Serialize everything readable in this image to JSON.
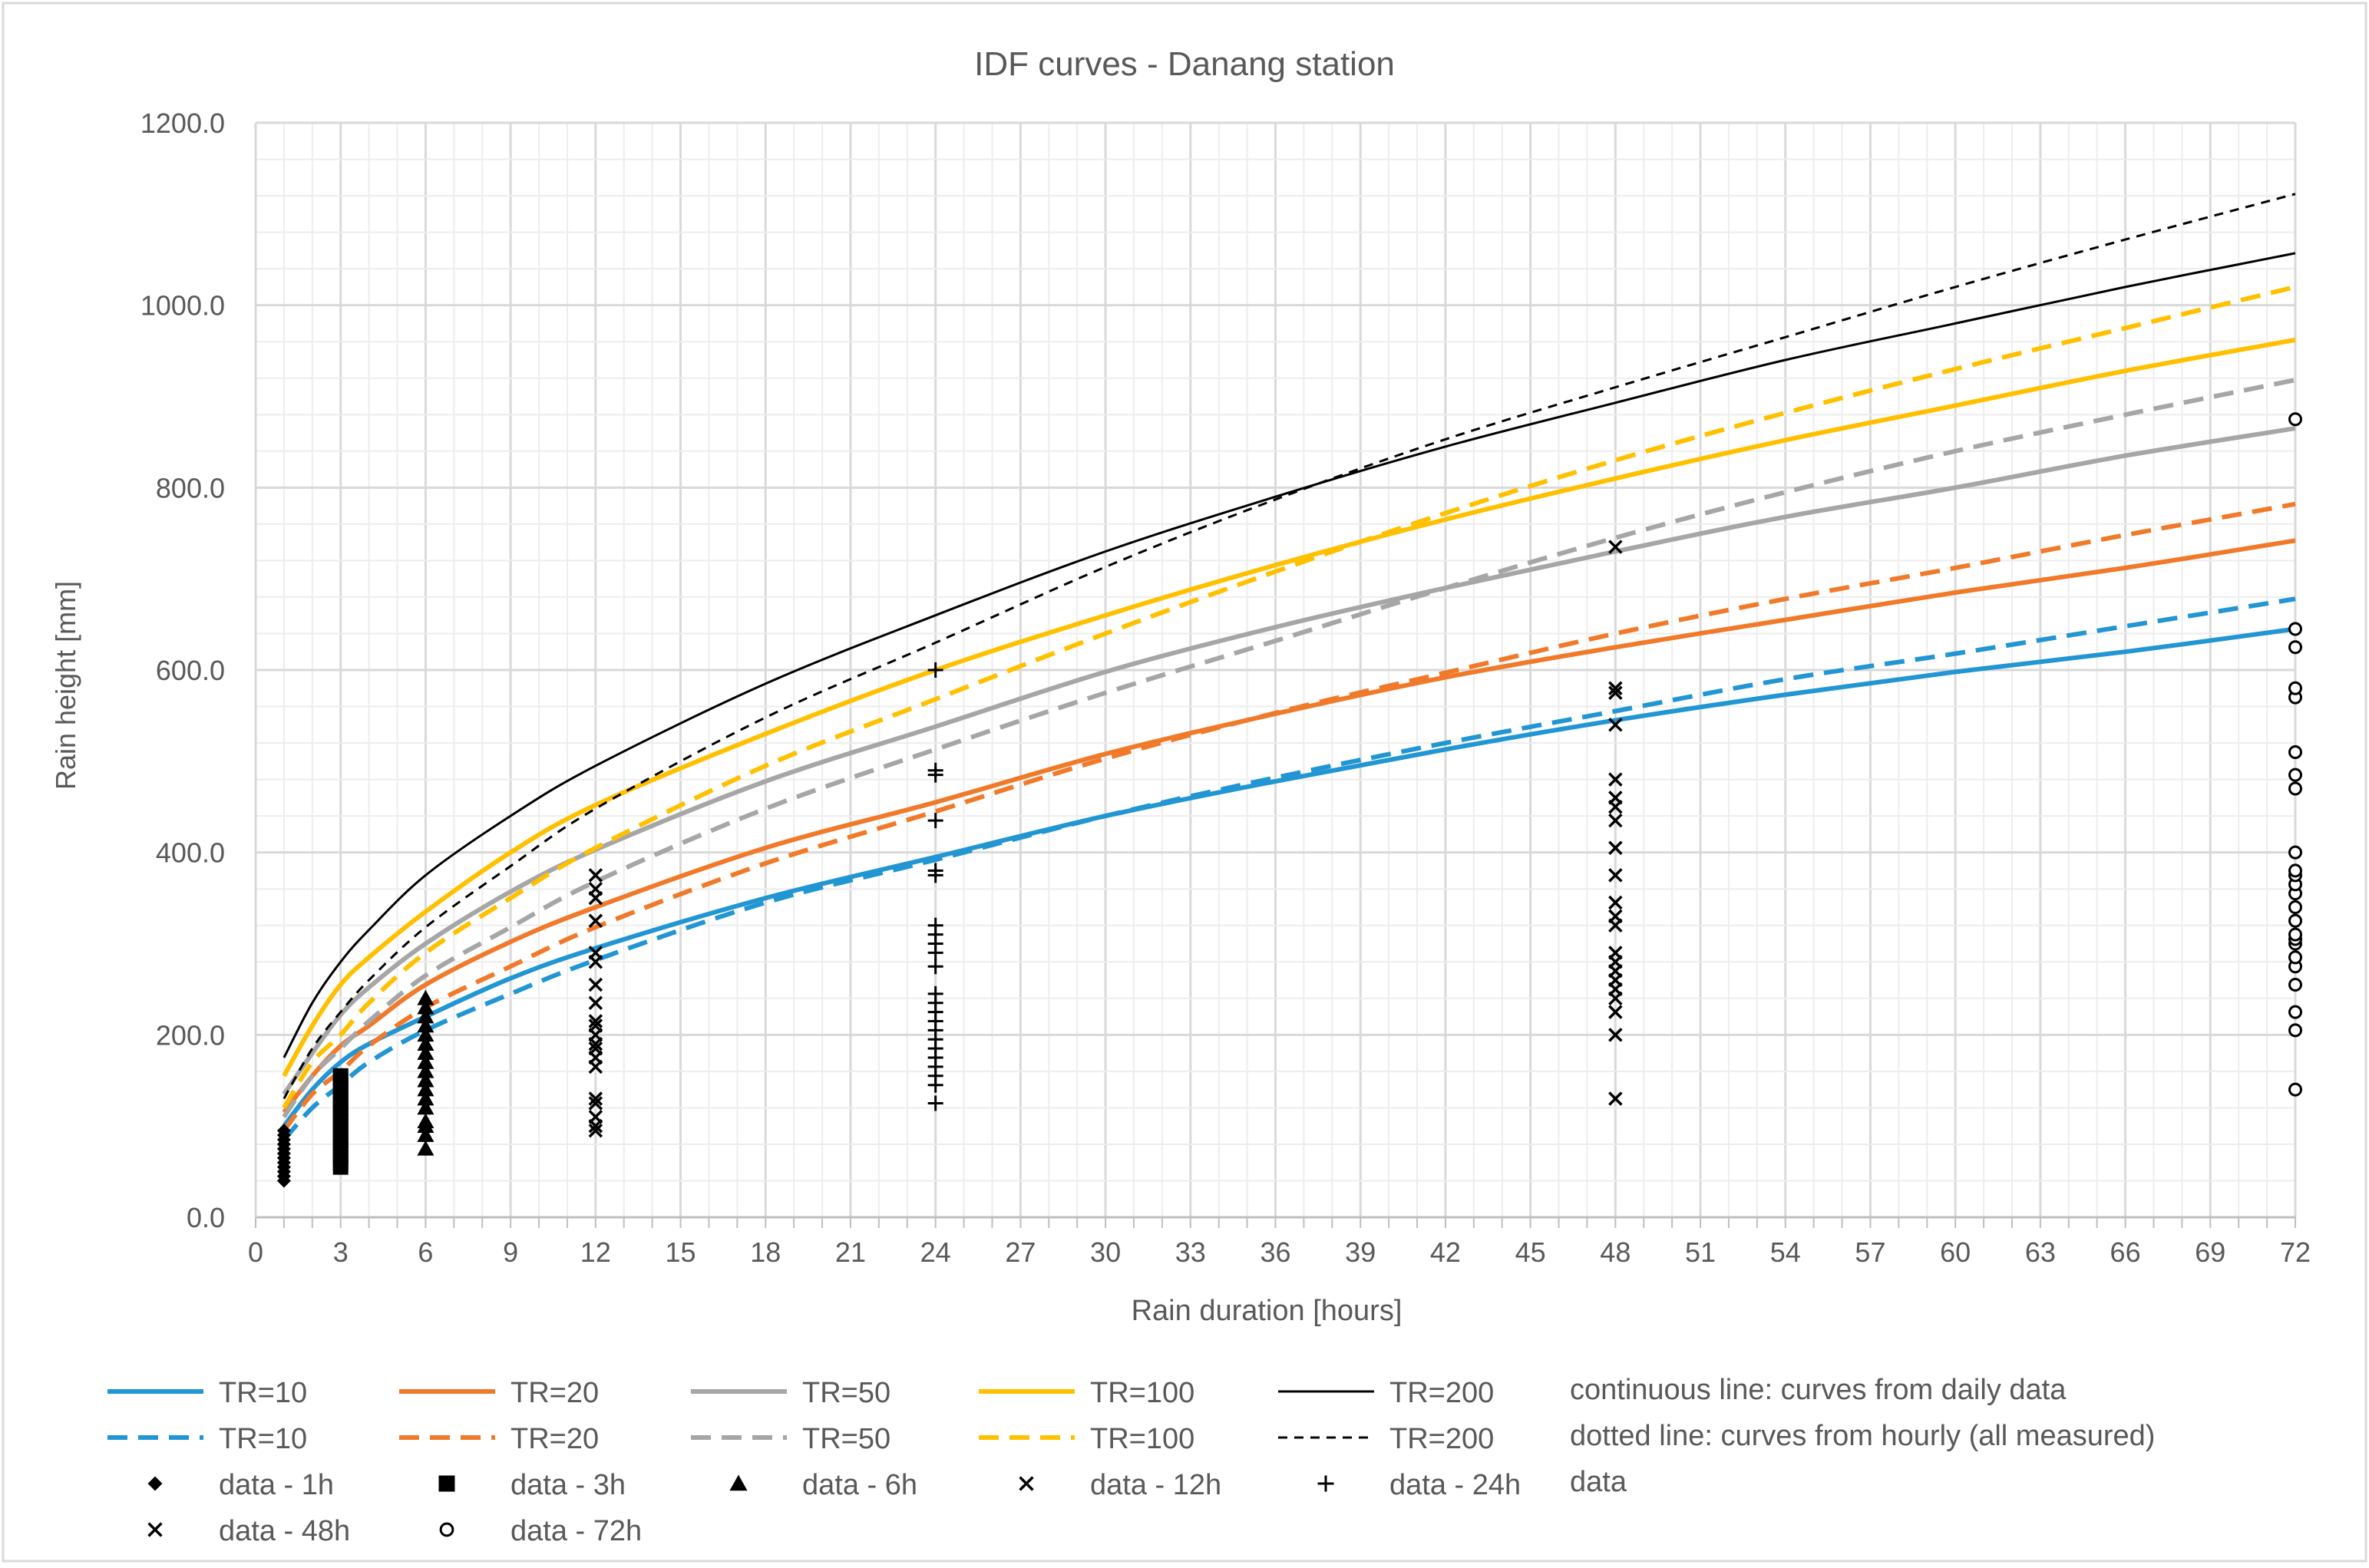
{
  "chart_data": {
    "type": "line",
    "title": "IDF curves - Danang station",
    "xlabel": "Rain duration  [hours]",
    "ylabel": "Rain height [mm]",
    "xlim": [
      0,
      72
    ],
    "ylim": [
      0,
      1200
    ],
    "x_ticks": [
      "0",
      "3",
      "6",
      "9",
      "12",
      "15",
      "18",
      "21",
      "24",
      "27",
      "30",
      "33",
      "36",
      "39",
      "42",
      "45",
      "48",
      "51",
      "54",
      "57",
      "60",
      "63",
      "66",
      "69",
      "72"
    ],
    "y_ticks": [
      "0.0",
      "200.0",
      "400.0",
      "600.0",
      "800.0",
      "1000.0",
      "1200.0"
    ],
    "grid": true,
    "x_curve": [
      1,
      2,
      3,
      4,
      6,
      9,
      12,
      18,
      24,
      30,
      36,
      42,
      48,
      54,
      60,
      66,
      72
    ],
    "series": [
      {
        "name": "TR=10",
        "source": "daily",
        "color": "#2196D3",
        "dash": "solid",
        "values": [
          100,
          140,
          170,
          190,
          220,
          262,
          295,
          350,
          395,
          440,
          478,
          513,
          545,
          573,
          598,
          620,
          645
        ]
      },
      {
        "name": "TR=20",
        "source": "daily",
        "color": "#F07A2A",
        "dash": "solid",
        "values": [
          115,
          155,
          188,
          210,
          255,
          302,
          340,
          405,
          455,
          508,
          552,
          592,
          625,
          655,
          685,
          712,
          742
        ]
      },
      {
        "name": "TR=50",
        "source": "daily",
        "color": "#A6A6A6",
        "dash": "solid",
        "values": [
          135,
          180,
          222,
          252,
          300,
          357,
          403,
          478,
          538,
          598,
          647,
          690,
          730,
          768,
          800,
          835,
          865
        ]
      },
      {
        "name": "TR=100",
        "source": "daily",
        "color": "#FFC000",
        "dash": "solid",
        "values": [
          155,
          210,
          255,
          285,
          335,
          400,
          452,
          530,
          600,
          660,
          715,
          765,
          810,
          852,
          890,
          928,
          962
        ]
      },
      {
        "name": "TR=200",
        "source": "daily",
        "color": "#000000",
        "dash": "solid",
        "values": [
          175,
          235,
          280,
          315,
          375,
          440,
          495,
          585,
          660,
          730,
          790,
          845,
          893,
          940,
          980,
          1020,
          1057
        ]
      },
      {
        "name": "TR=10",
        "source": "hourly",
        "color": "#2196D3",
        "dash": "dashed",
        "values": [
          85,
          120,
          145,
          170,
          205,
          245,
          282,
          345,
          392,
          440,
          482,
          520,
          555,
          590,
          618,
          648,
          678
        ]
      },
      {
        "name": "TR=20",
        "source": "hourly",
        "color": "#F07A2A",
        "dash": "dashed",
        "values": [
          95,
          135,
          160,
          188,
          230,
          275,
          318,
          388,
          445,
          503,
          553,
          597,
          640,
          678,
          712,
          748,
          782
        ]
      },
      {
        "name": "TR=50",
        "source": "hourly",
        "color": "#A6A6A6",
        "dash": "dashed",
        "values": [
          110,
          155,
          185,
          215,
          265,
          318,
          368,
          448,
          513,
          575,
          632,
          690,
          745,
          795,
          840,
          880,
          918
        ]
      },
      {
        "name": "TR=100",
        "source": "hourly",
        "color": "#FFC000",
        "dash": "dashed",
        "values": [
          120,
          170,
          200,
          235,
          290,
          350,
          405,
          495,
          568,
          640,
          708,
          772,
          830,
          882,
          930,
          975,
          1020
        ]
      },
      {
        "name": "TR=200",
        "source": "hourly",
        "color": "#000000",
        "dash": "dotted",
        "values": [
          130,
          185,
          225,
          260,
          318,
          385,
          448,
          548,
          630,
          713,
          787,
          853,
          910,
          965,
          1020,
          1072,
          1122
        ]
      }
    ],
    "observations": [
      {
        "name": "data - 1h",
        "marker": "diamond",
        "x": 1,
        "values": [
          40,
          45,
          50,
          55,
          60,
          65,
          70,
          75,
          80,
          85,
          90,
          95
        ]
      },
      {
        "name": "data - 3h",
        "marker": "square",
        "x": 3,
        "values": [
          55,
          60,
          65,
          70,
          75,
          80,
          85,
          90,
          95,
          100,
          105,
          110,
          115,
          120,
          125,
          130,
          135,
          140,
          145,
          150,
          155
        ]
      },
      {
        "name": "data - 6h",
        "marker": "triangle",
        "x": 6,
        "values": [
          75,
          90,
          100,
          105,
          120,
          130,
          140,
          150,
          160,
          170,
          180,
          190,
          200,
          210,
          220,
          230,
          240
        ]
      },
      {
        "name": "data - 12h",
        "marker": "x",
        "x": 12,
        "values": [
          95,
          100,
          110,
          125,
          130,
          165,
          175,
          185,
          190,
          200,
          210,
          215,
          235,
          255,
          280,
          290,
          325,
          350,
          360,
          375
        ]
      },
      {
        "name": "data - 24h",
        "marker": "plus",
        "x": 24,
        "values": [
          125,
          145,
          155,
          165,
          175,
          185,
          195,
          205,
          215,
          225,
          235,
          245,
          275,
          290,
          300,
          310,
          320,
          375,
          380,
          435,
          485,
          490,
          600
        ]
      },
      {
        "name": "data - 48h",
        "marker": "x",
        "x": 48,
        "values": [
          130,
          200,
          225,
          240,
          250,
          260,
          270,
          280,
          290,
          320,
          330,
          345,
          375,
          405,
          435,
          450,
          460,
          480,
          540,
          575,
          580,
          735
        ]
      },
      {
        "name": "data - 72h",
        "marker": "circle",
        "x": 72,
        "values": [
          140,
          205,
          225,
          255,
          275,
          285,
          300,
          305,
          310,
          325,
          340,
          355,
          365,
          375,
          380,
          400,
          470,
          485,
          510,
          570,
          580,
          625,
          645,
          875
        ]
      }
    ],
    "legend": {
      "placement": "bottom",
      "line_labels": [
        "TR=10",
        "TR=20",
        "TR=50",
        "TR=100",
        "TR=200"
      ],
      "notes": [
        "continuous line: curves from daily data",
        "dotted line: curves from hourly (all measured)",
        "data"
      ]
    }
  }
}
